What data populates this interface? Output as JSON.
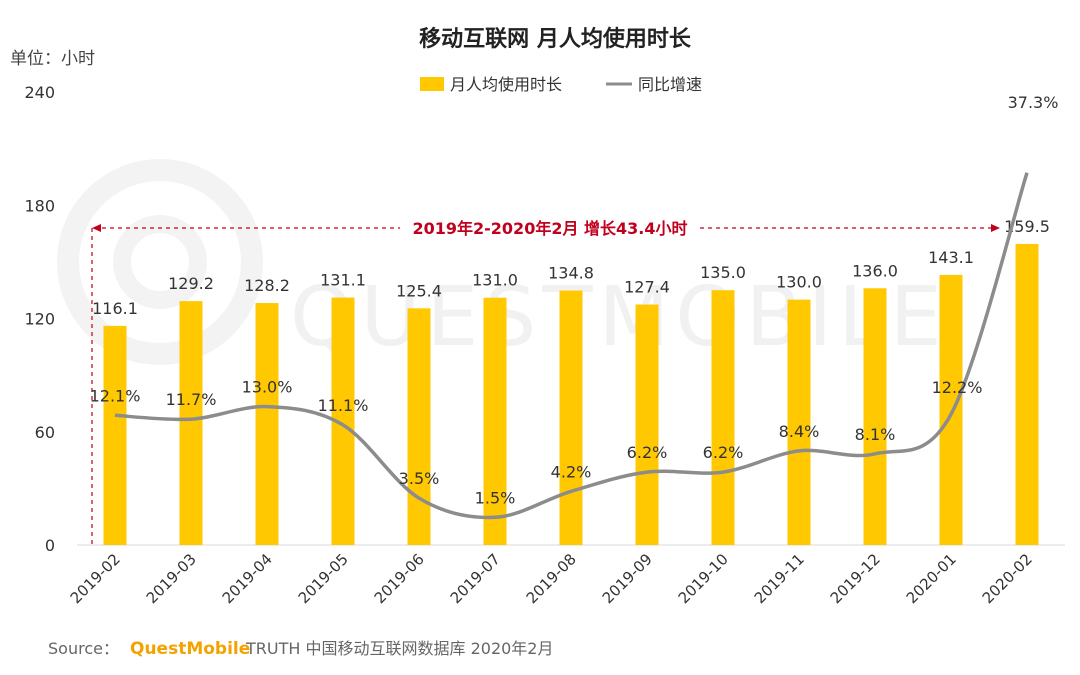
{
  "chart_data": {
    "type": "bar",
    "title": "移动互联网 月人均使用时长",
    "unit_label": "单位：小时",
    "categories": [
      "2019-02",
      "2019-03",
      "2019-04",
      "2019-05",
      "2019-06",
      "2019-07",
      "2019-08",
      "2019-09",
      "2019-10",
      "2019-11",
      "2019-12",
      "2020-01",
      "2020-02"
    ],
    "series": [
      {
        "name": "月人均使用时长",
        "type": "bar",
        "color": "#ffc800",
        "values": [
          116.1,
          129.2,
          128.2,
          131.1,
          125.4,
          131.0,
          134.8,
          127.4,
          135.0,
          130.0,
          136.0,
          143.1,
          159.5
        ],
        "labels": [
          "116.1",
          "129.2",
          "128.2",
          "131.1",
          "125.4",
          "131.0",
          "134.8",
          "127.4",
          "135.0",
          "130.0",
          "136.0",
          "143.1",
          "159.5"
        ]
      },
      {
        "name": "同比增速",
        "type": "line",
        "color": "#8c8c8c",
        "values": [
          12.1,
          11.7,
          13.0,
          11.1,
          3.5,
          1.5,
          4.2,
          6.2,
          6.2,
          8.4,
          8.1,
          12.2,
          37.3
        ],
        "labels": [
          "12.1%",
          "11.7%",
          "13.0%",
          "11.1%",
          "3.5%",
          "1.5%",
          "4.2%",
          "6.2%",
          "6.2%",
          "8.4%",
          "8.1%",
          "12.2%",
          "37.3%"
        ]
      }
    ],
    "ylim": [
      0,
      240
    ],
    "yticks": [
      "0",
      "60",
      "120",
      "180",
      "240"
    ],
    "legend_position": "top-center",
    "annotation": "2019年2-2020年2月  增长43.4小时",
    "watermark": "QUESTMOBILE"
  },
  "source": {
    "label": "Source：",
    "brand": "QuestMobile",
    "text": "TRUTH 中国移动互联网数据库 2020年2月"
  }
}
